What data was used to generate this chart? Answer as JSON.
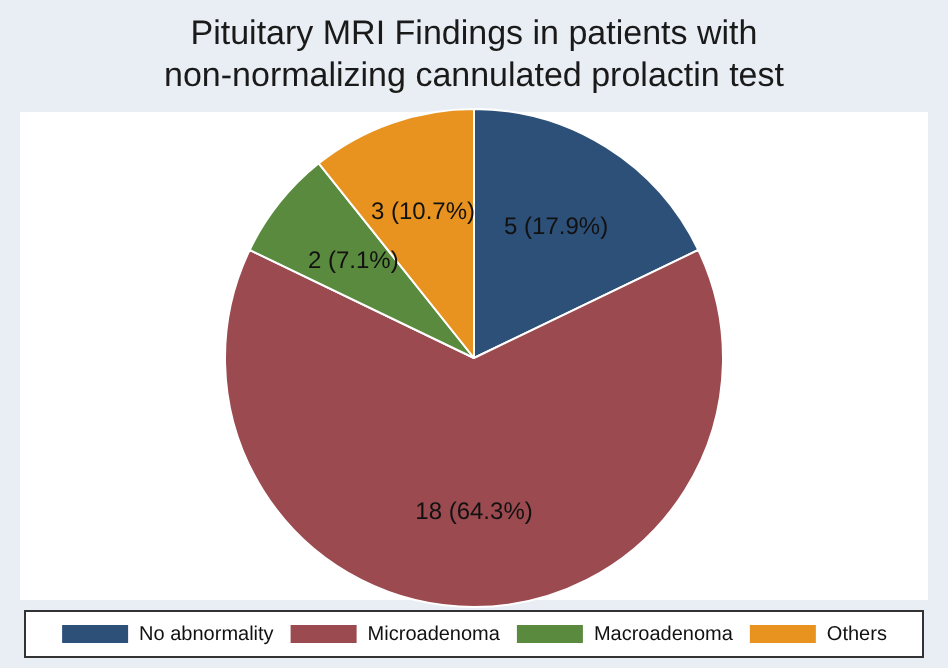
{
  "chart_data": {
    "type": "pie",
    "title": "Pituitary MRI Findings in patients with non-normalizing cannulated prolactin test",
    "categories": [
      "No abnormality",
      "Microadenoma",
      "Macroadenoma",
      "Others"
    ],
    "values": [
      5,
      18,
      2,
      3
    ],
    "colors": [
      "#2d5079",
      "#9b4a4f",
      "#5a8a3e",
      "#e8931f"
    ],
    "value_labels": [
      "5 (17.9%)",
      "18 (64.3%)",
      "2 (7.1%)",
      "3 (10.7%)"
    ],
    "legend": "bottom"
  }
}
